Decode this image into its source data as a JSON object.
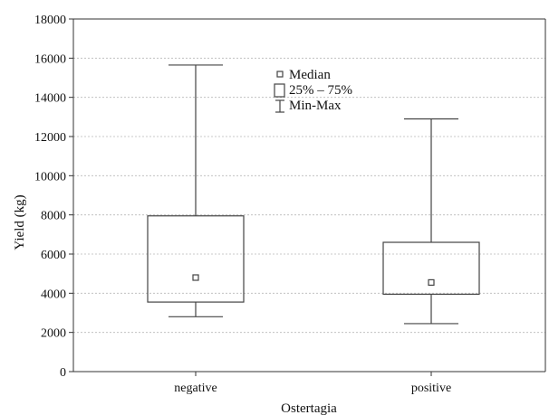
{
  "chart_data": {
    "type": "boxplot",
    "xlabel": "Ostertagia",
    "ylabel": "Yield (kg)",
    "ylim": [
      0,
      18000
    ],
    "yticks": [
      0,
      2000,
      4000,
      6000,
      8000,
      10000,
      12000,
      14000,
      16000,
      18000
    ],
    "categories": [
      "negative",
      "positive"
    ],
    "boxes": [
      {
        "category": "negative",
        "min": 2800,
        "q1": 3550,
        "median": 4800,
        "q3": 7950,
        "max": 15650
      },
      {
        "category": "positive",
        "min": 2450,
        "q1": 3950,
        "median": 4550,
        "q3": 6600,
        "max": 12900
      }
    ],
    "grid": true,
    "legend": {
      "placement": "top-center",
      "entries": [
        "Median",
        "25% – 75%",
        "Min-Max"
      ]
    }
  }
}
